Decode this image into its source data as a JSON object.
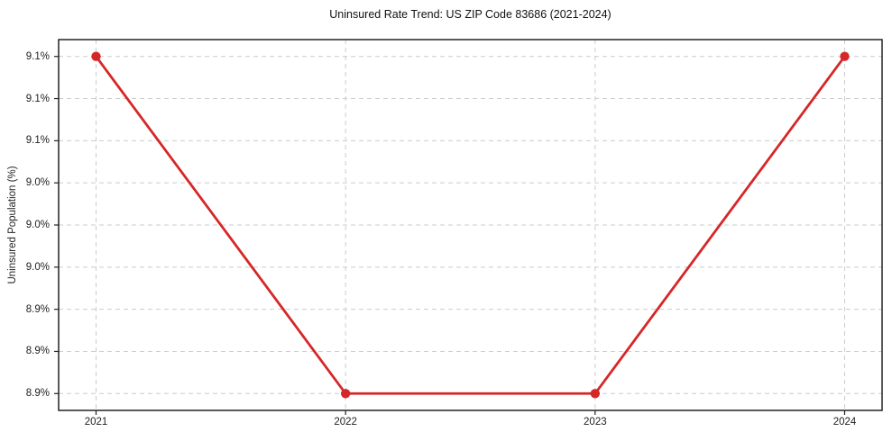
{
  "chart_data": {
    "type": "line",
    "title": "Uninsured Rate Trend: US ZIP Code 83686 (2021-2024)",
    "ylabel": "Uninsured Population (%)",
    "xlabel": "",
    "x": [
      2021,
      2022,
      2023,
      2024
    ],
    "values": [
      9.1,
      8.9,
      8.9,
      9.1
    ],
    "x_ticks": [
      {
        "value": 2021,
        "label": "2021"
      },
      {
        "value": 2022,
        "label": "2022"
      },
      {
        "value": 2023,
        "label": "2023"
      },
      {
        "value": 2024,
        "label": "2024"
      }
    ],
    "y_ticks": [
      {
        "value": 8.9,
        "label": "8.9%"
      },
      {
        "value": 8.925,
        "label": "8.9%"
      },
      {
        "value": 8.95,
        "label": "8.9%"
      },
      {
        "value": 8.975,
        "label": "9.0%"
      },
      {
        "value": 9.0,
        "label": "9.0%"
      },
      {
        "value": 9.025,
        "label": "9.0%"
      },
      {
        "value": 9.05,
        "label": "9.1%"
      },
      {
        "value": 9.075,
        "label": "9.1%"
      },
      {
        "value": 9.1,
        "label": "9.1%"
      }
    ],
    "xlim": [
      2020.85,
      2024.15
    ],
    "ylim": [
      8.89,
      9.11
    ],
    "grid": true,
    "grid_style": "dashed",
    "legend": false,
    "line_color": "#d62728",
    "marker": "circle",
    "grid_color": "#cccccc",
    "axis_color": "#222222"
  }
}
